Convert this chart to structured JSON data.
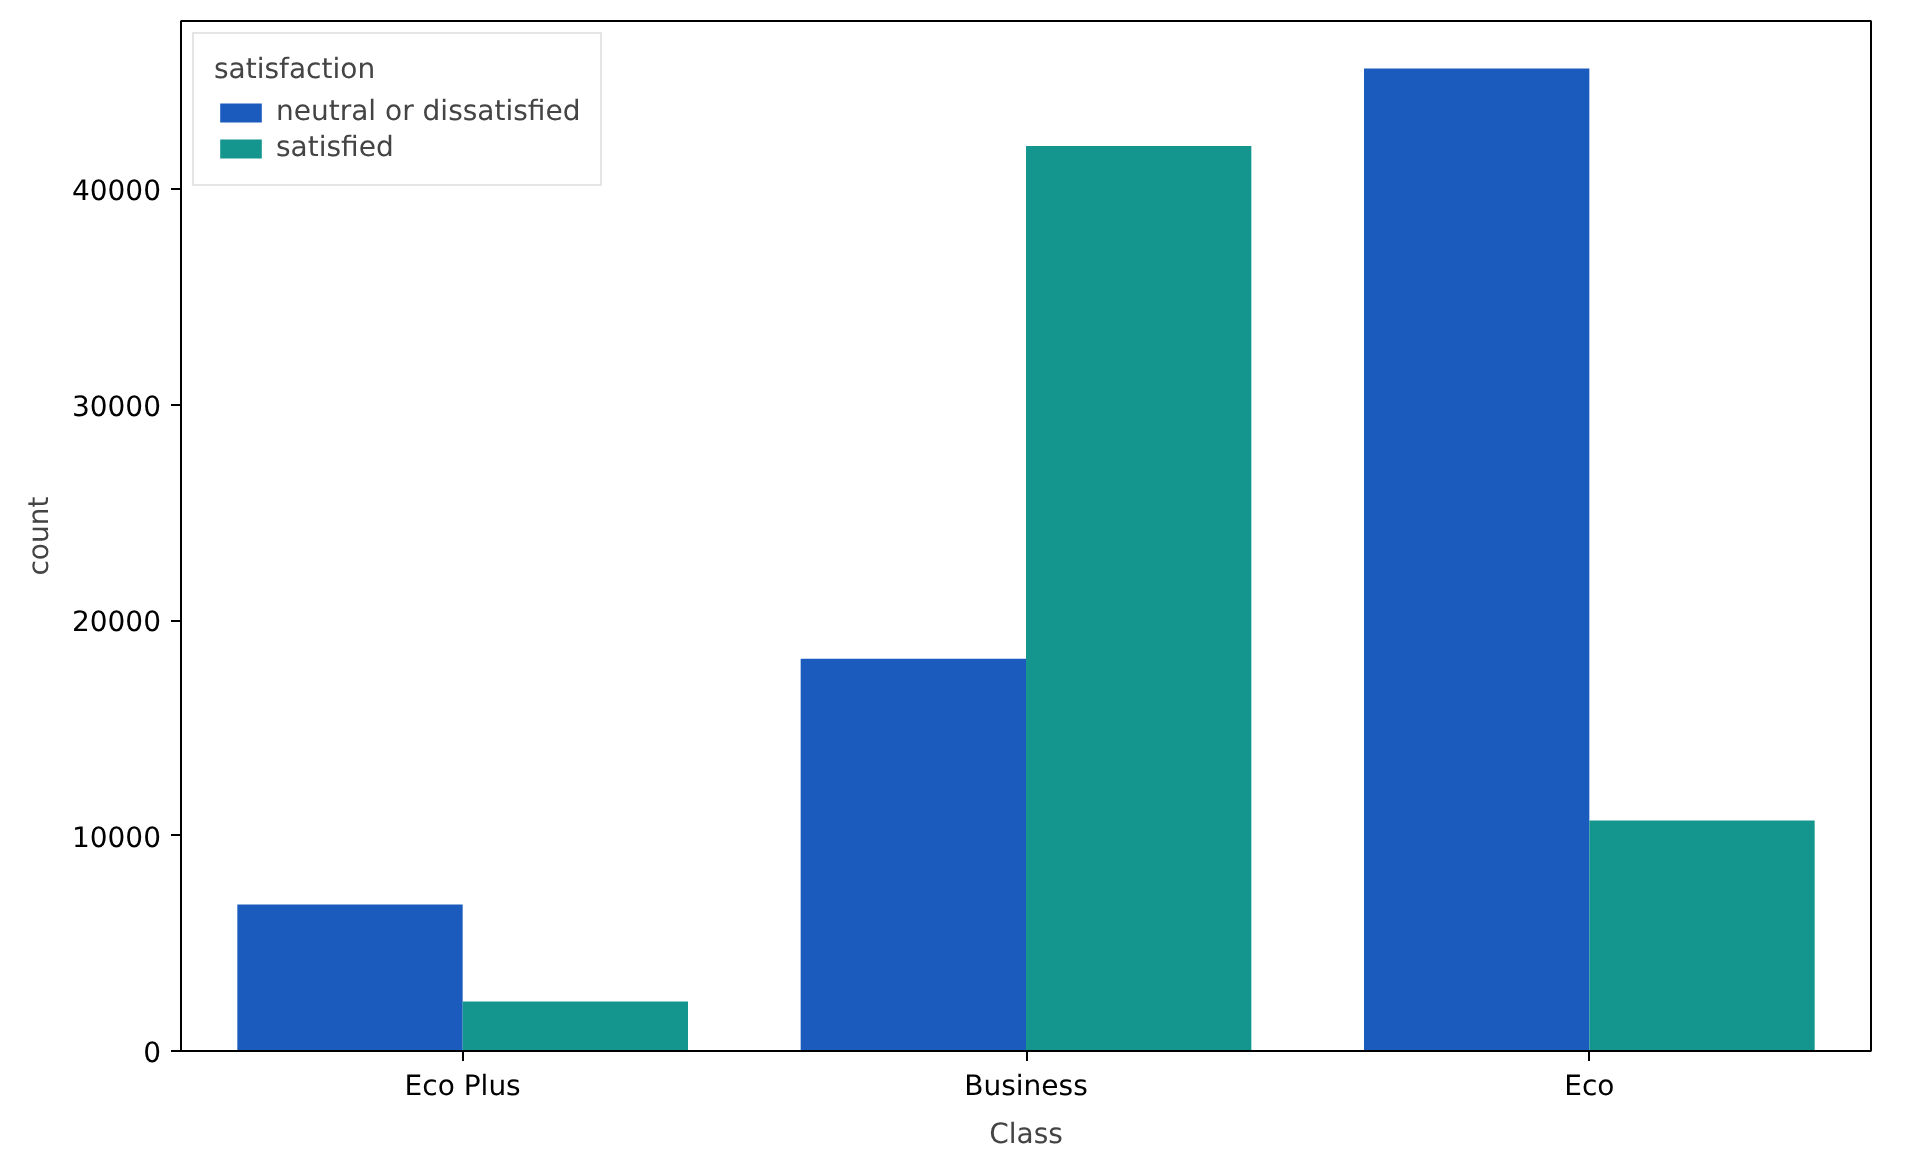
{
  "chart_data": {
    "type": "bar",
    "xlabel": "Class",
    "ylabel": "count",
    "legend_title": "satisfaction",
    "categories": [
      "Eco Plus",
      "Business",
      "Eco"
    ],
    "series": [
      {
        "name": "neutral or dissatisfied",
        "color": "#1a5bbd",
        "values": [
          6800,
          18200,
          45600
        ]
      },
      {
        "name": "satisfied",
        "color": "#14968f",
        "values": [
          2300,
          42000,
          10700
        ]
      }
    ],
    "ylim": [
      0,
      47800
    ],
    "yticks": [
      0,
      10000,
      20000,
      30000,
      40000
    ],
    "grid": false,
    "legend": "top left"
  }
}
